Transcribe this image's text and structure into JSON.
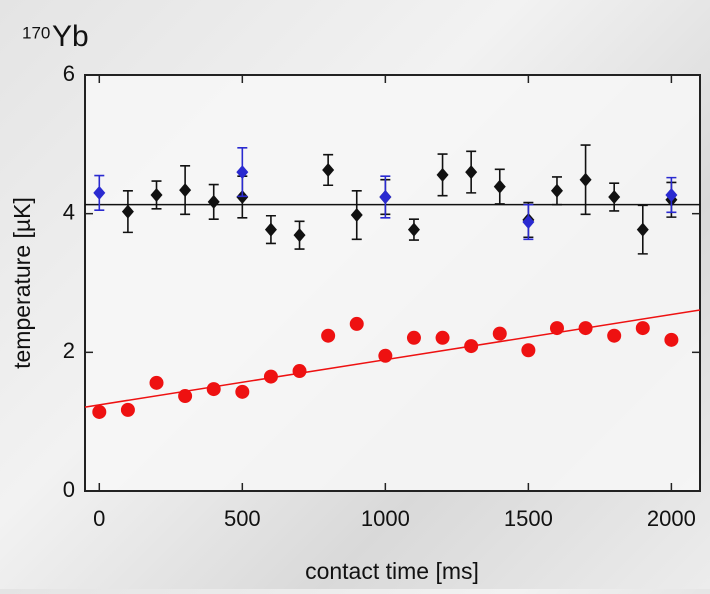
{
  "chart_data": {
    "type": "scatter",
    "title_superscript": "170",
    "title": "Yb",
    "x_label": "contact time [ms]",
    "y_label": "temperature [µK]",
    "xlim": [
      -50,
      2100
    ],
    "ylim": [
      0,
      6
    ],
    "xticks": [
      0,
      500,
      1000,
      1500,
      2000
    ],
    "yticks": [
      0,
      2,
      4,
      6
    ],
    "series": [
      {
        "color": "#111111",
        "marker": "diamond",
        "x": [
          100,
          200,
          300,
          400,
          500,
          600,
          700,
          800,
          900,
          1000,
          1100,
          1200,
          1300,
          1400,
          1500,
          1600,
          1700,
          1800,
          1900,
          2000
        ],
        "values": [
          4.03,
          4.27,
          4.34,
          4.17,
          4.24,
          3.77,
          3.69,
          4.63,
          3.98,
          4.24,
          3.77,
          4.56,
          4.6,
          4.39,
          3.91,
          4.33,
          4.49,
          4.24,
          3.77,
          4.2
        ],
        "errors": [
          0.3,
          0.2,
          0.35,
          0.25,
          0.3,
          0.2,
          0.2,
          0.22,
          0.35,
          0.25,
          0.15,
          0.3,
          0.3,
          0.25,
          0.25,
          0.2,
          0.5,
          0.2,
          0.35,
          0.25
        ]
      },
      {
        "color": "#2a2ad0",
        "marker": "diamond",
        "x": [
          0,
          500,
          1000,
          1500,
          2000
        ],
        "values": [
          4.3,
          4.6,
          4.24,
          3.88,
          4.27
        ],
        "errors": [
          0.25,
          0.35,
          0.3,
          0.25,
          0.25
        ]
      },
      {
        "color": "#ee1111",
        "marker": "circle",
        "x": [
          0,
          100,
          200,
          300,
          400,
          500,
          600,
          700,
          800,
          900,
          1000,
          1100,
          1200,
          1300,
          1400,
          1500,
          1600,
          1700,
          1800,
          1900,
          2000
        ],
        "values": [
          1.14,
          1.17,
          1.56,
          1.37,
          1.47,
          1.43,
          1.65,
          1.73,
          2.24,
          2.41,
          1.95,
          2.21,
          2.21,
          2.09,
          2.27,
          2.03,
          2.35,
          2.35,
          2.24,
          2.35,
          2.18
        ]
      }
    ],
    "fit_lines": [
      {
        "color": "#111111",
        "x": [
          -50,
          2100
        ],
        "values": [
          4.13,
          4.13
        ]
      },
      {
        "color": "#ee1111",
        "x": [
          -50,
          2100
        ],
        "values": [
          1.21,
          2.61
        ]
      }
    ]
  }
}
